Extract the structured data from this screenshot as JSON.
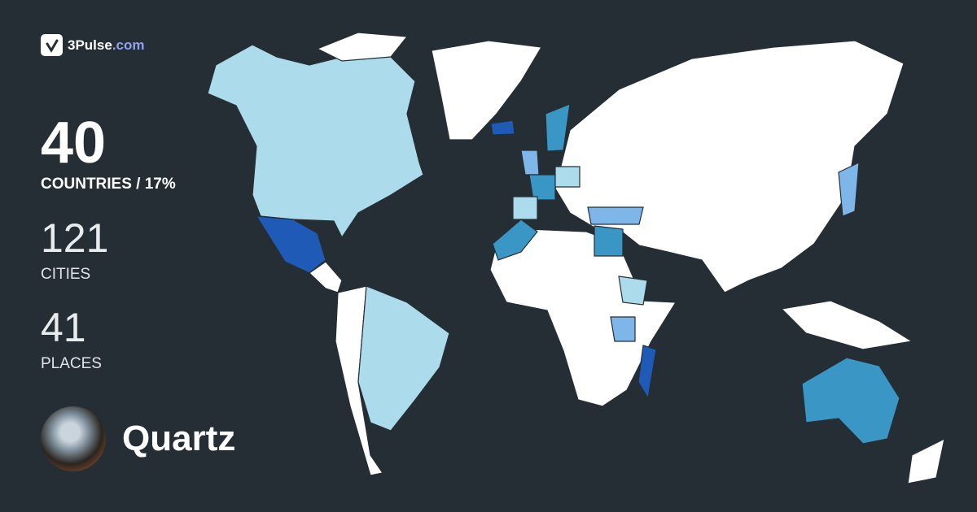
{
  "brand": {
    "name": "3Pulse",
    "domain": ".com",
    "icon": "pulse-check-icon",
    "domain_color": "#8fa2f0"
  },
  "stats": {
    "countries": {
      "value": "40",
      "label": "COUNTRIES / 17%"
    },
    "cities": {
      "value": "121",
      "label": "CITIES"
    },
    "places": {
      "value": "41",
      "label": "PLACES"
    }
  },
  "user": {
    "name": "Quartz",
    "avatar": "cat-photo-avatar"
  },
  "map": {
    "background": "#252e35",
    "unvisited_color": "#ffffff",
    "visit_colors": [
      "#acdcec",
      "#7eb6ea",
      "#3a96c4",
      "#1f5bb6"
    ]
  }
}
